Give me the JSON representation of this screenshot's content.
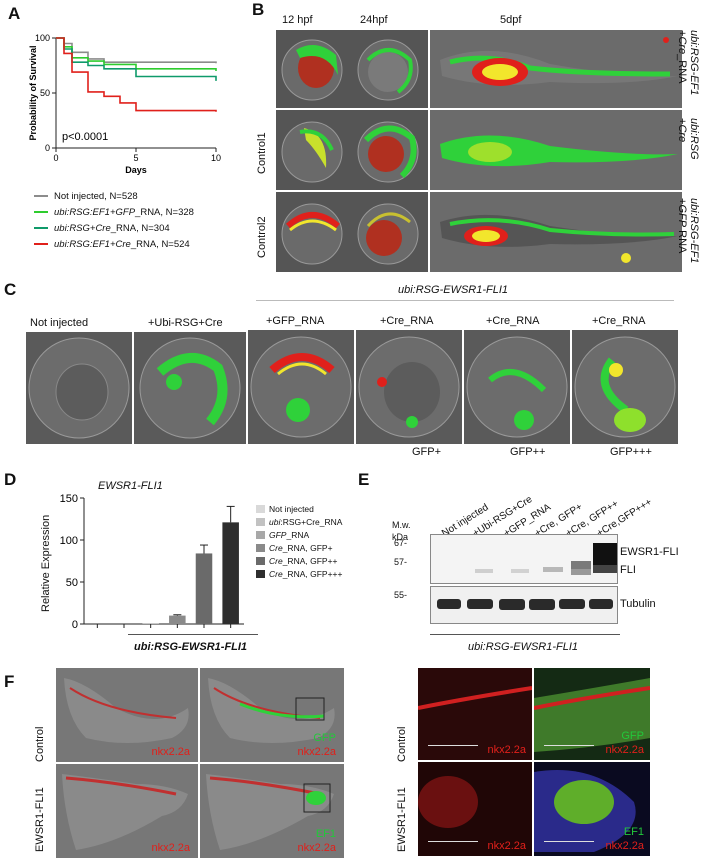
{
  "panels": {
    "A": "A",
    "B": "B",
    "C": "C",
    "D": "D",
    "E": "E",
    "F": "F"
  },
  "panelA": {
    "ylabel": "Probability of Survival",
    "xlabel": "Days",
    "pvalue": "p<0.0001",
    "legend": [
      {
        "label_pre": "Not injected, N=528",
        "label_it": "",
        "label_post": "",
        "color": "#8c8c8c"
      },
      {
        "label_pre": "",
        "label_it": "ubi:RSG:EF1+GFP",
        "label_post": "_RNA, N=328",
        "color": "#2ecc2e"
      },
      {
        "label_pre": "",
        "label_it": "ubi:RSG+Cre",
        "label_post": "_RNA, N=304",
        "color": "#0f9a6a"
      },
      {
        "label_pre": "",
        "label_it": "ubi:RSG:EF1+Cre",
        "label_post": "_RNA, N=524",
        "color": "#e0201b"
      }
    ]
  },
  "chart_data": [
    {
      "type": "line",
      "xlabel": "Days",
      "ylabel": "Probability of Survival",
      "xlim": [
        0,
        10
      ],
      "ylim": [
        0,
        100
      ],
      "xticks": [
        0,
        5,
        10
      ],
      "yticks": [
        0,
        50,
        100
      ],
      "annotation": "p<0.0001",
      "series": [
        {
          "name": "Not injected, N=528",
          "color": "#8c8c8c",
          "x": [
            0,
            0.5,
            1,
            2,
            3,
            10
          ],
          "y": [
            100,
            95,
            87,
            81,
            78,
            77
          ]
        },
        {
          "name": "ubi:RSG:EF1+GFP_RNA, N=328",
          "color": "#2ecc2e",
          "x": [
            0,
            0.5,
            1,
            2,
            3,
            5,
            10
          ],
          "y": [
            100,
            92,
            82,
            79,
            76,
            72,
            70
          ]
        },
        {
          "name": "ubi:RSG+Cre_RNA, N=304",
          "color": "#0f9a6a",
          "x": [
            0,
            0.5,
            1,
            2,
            3,
            5,
            10
          ],
          "y": [
            100,
            90,
            78,
            75,
            72,
            65,
            61
          ]
        },
        {
          "name": "ubi:RSG:EF1+Cre_RNA, N=524",
          "color": "#e0201b",
          "x": [
            0,
            0.5,
            1,
            2,
            3,
            4,
            5,
            10
          ],
          "y": [
            100,
            86,
            69,
            51,
            47,
            41,
            34,
            33
          ]
        }
      ]
    },
    {
      "type": "bar",
      "title": "EWSR1-FLI1",
      "ylabel": "Relative Expression",
      "xlabel": "ubi:RSG-EWSR1-FLI1",
      "ylim": [
        0,
        150
      ],
      "yticks": [
        0,
        50,
        100,
        150
      ],
      "categories": [
        "Not injected",
        "ubi:RSG+Cre_RNA",
        "GFP_RNA",
        "Cre_RNA, GFP+",
        "Cre_RNA, GFP++",
        "Cre_RNA, GFP+++"
      ],
      "values": [
        0,
        0,
        0.5,
        10,
        84,
        121
      ],
      "errors": [
        0,
        0,
        0,
        1,
        10,
        19
      ],
      "colors": [
        "#d9d9d9",
        "#c2c2c2",
        "#a8a8a8",
        "#8a8a8a",
        "#6a6a6a",
        "#2e2e2e"
      ]
    }
  ],
  "panelB": {
    "cols": [
      "12 hpf",
      "24hpf",
      "5dpf"
    ],
    "rows_right": [
      {
        "l1_it": "ubi:RSG-EF1",
        "l2_pre": "+",
        "l2_it": "Cre",
        "l2_post": "_RNA"
      },
      {
        "l1_it": "ubi:RSG",
        "l2_pre": "+",
        "l2_it": "Cre",
        "l2_post": ""
      },
      {
        "l1_it": "ubi:RSG-EF1",
        "l2_pre": "+",
        "l2_it": "GFP",
        "l2_post": " RNA"
      }
    ],
    "rows_left": [
      "Control1",
      "Control2"
    ]
  },
  "panelC": {
    "header": "ubi:RSG-EWSR1-FLI1",
    "titles": [
      "Not injected",
      "+Ubi-RSG+Cre",
      "+GFP_RNA",
      "+Cre_RNA",
      "+Cre_RNA",
      "+Cre_RNA"
    ],
    "sublabels": [
      "GFP+",
      "GFP++",
      "GFP+++"
    ]
  },
  "panelD": {
    "title": "EWSR1-FLI1",
    "ylabel": "Relative Expression",
    "xlabel": "ubi:RSG-EWSR1-FLI1",
    "legend": [
      {
        "pre": "",
        "it": "",
        "post": "Not injected"
      },
      {
        "pre": "",
        "it": "ubi",
        "post": ":RSG+Cre_RNA"
      },
      {
        "pre": "",
        "it": "GFP",
        "post": "_RNA"
      },
      {
        "pre": "",
        "it": "Cre",
        "post": "_RNA, GFP+"
      },
      {
        "pre": "",
        "it": "Cre",
        "post": "_RNA, GFP++"
      },
      {
        "pre": "",
        "it": "Cre",
        "post": "_RNA, GFP+++"
      }
    ]
  },
  "panelE": {
    "mw": "M.w.",
    "kda": "kDa",
    "lanes": [
      "Not injected",
      "+Ubi-RSG+Cre",
      "+GFP_RNA",
      "+Cre, GFP+",
      "+Cre, GFP++",
      "+Cre,GFP+++"
    ],
    "markers": [
      "67-",
      "57-",
      "55-"
    ],
    "bands": [
      "EWSR1-FLI",
      "FLI",
      "Tubulin"
    ],
    "xlabel": "ubi:RSG-EWSR1-FLI1"
  },
  "panelF": {
    "rows": [
      "Control",
      "EWSR1-FLI1"
    ],
    "nkx": "nkx2.2a",
    "gfp": "GFP",
    "ef1": "EF1"
  }
}
